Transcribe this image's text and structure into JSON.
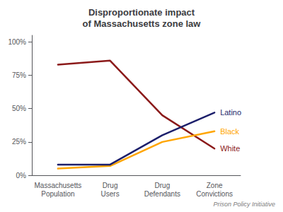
{
  "chart_data": {
    "type": "line",
    "title": "Disproportionate impact\nof Massachusetts zone law",
    "subtitle": "Prison Policy Initiative",
    "categories": [
      "Massachusetts\nPopulation",
      "Drug\nUsers",
      "Drug\nDefendants",
      "Zone\nConvictions"
    ],
    "series": [
      {
        "name": "White",
        "color": "#8B1A1A",
        "values": [
          83,
          86,
          45,
          20
        ]
      },
      {
        "name": "Black",
        "color": "#FFA500",
        "values": [
          5,
          7,
          25,
          33
        ]
      },
      {
        "name": "Latino",
        "color": "#1C1F6B",
        "values": [
          8,
          8,
          30,
          47
        ]
      }
    ],
    "ylim": [
      0,
      105
    ],
    "yticks": [
      {
        "value": 0,
        "label": "0%"
      },
      {
        "value": 25,
        "label": "25%"
      },
      {
        "value": 50,
        "label": "50%"
      },
      {
        "value": 75,
        "label": "75%"
      },
      {
        "value": 100,
        "label": "100%"
      }
    ],
    "grid": false
  }
}
